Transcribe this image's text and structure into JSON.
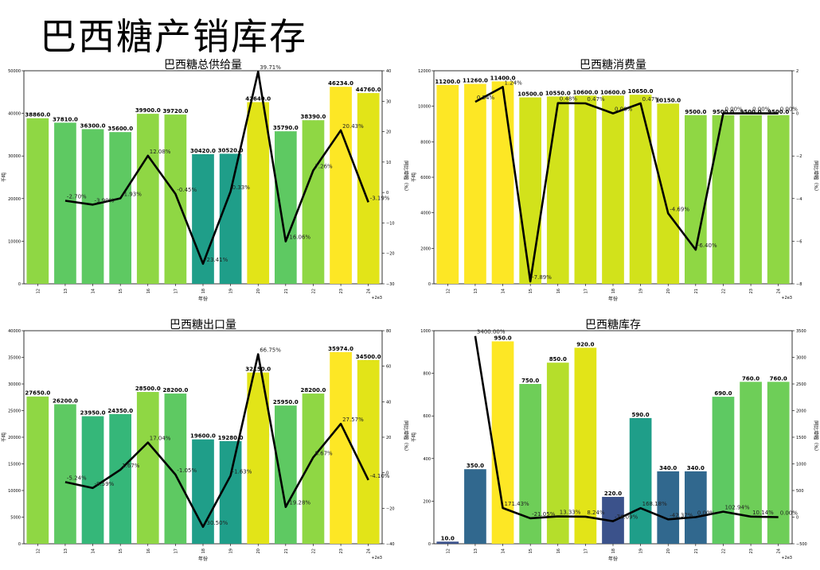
{
  "page": {
    "title": "巴西糖产销库存"
  },
  "palette": {
    "c00": "#3b528b",
    "c01": "#31688e",
    "c02": "#26828e",
    "c03": "#1f9e89",
    "c04": "#35b779",
    "c05": "#5ec962",
    "c06": "#6ece58",
    "c07": "#8fd744",
    "c08": "#b5de2b",
    "c09": "#d2e21b",
    "c10": "#e2e418",
    "c11": "#fde725",
    "line": "#000000",
    "grid": "#d8d8d8"
  },
  "chart_data": [
    {
      "type": "bar",
      "title": "巴西糖总供给量",
      "xlabel": "年份",
      "ylabel": "千吨",
      "y2label": "同比增幅（%）",
      "x_offset_label": "+2e3",
      "categories": [
        "12",
        "13",
        "14",
        "15",
        "16",
        "17",
        "18",
        "19",
        "20",
        "21",
        "22",
        "23",
        "24"
      ],
      "values": [
        38860.0,
        37810.0,
        36300.0,
        35600.0,
        39900.0,
        39720.0,
        30420.0,
        30520.0,
        42640.0,
        35790.0,
        38390.0,
        46234.0,
        44760.0
      ],
      "value_labels": [
        "38860.0",
        "37810.0",
        "36300.0",
        "35600.0",
        "39900.0",
        "39720.0",
        "30420.0",
        "30520.0",
        "42640.0",
        "35790.0",
        "38390.0",
        "46234.0",
        "44760.0"
      ],
      "bar_colors": [
        "c07",
        "c05",
        "c05",
        "c05",
        "c07",
        "c07",
        "c03",
        "c03",
        "c10",
        "c05",
        "c07",
        "c11",
        "c10"
      ],
      "ylim": [
        0,
        50000
      ],
      "yticks": [
        "0",
        "10000",
        "20000",
        "30000",
        "40000",
        "50000"
      ],
      "growth": [
        null,
        -2.7,
        -3.99,
        -1.93,
        12.08,
        -0.45,
        -23.41,
        0.33,
        39.71,
        -16.06,
        7.26,
        20.43,
        -3.19
      ],
      "growth_labels": [
        "",
        "-2.70%",
        "-3.99%",
        "-1.93%",
        "12.08%",
        "-0.45%",
        "-23.41%",
        "0.33%",
        "39.71%",
        "-16.06%",
        "7.26%",
        "20.43%",
        "-3.19%"
      ],
      "y2lim": [
        -30,
        40
      ],
      "y2ticks": [
        "−30",
        "−20",
        "−10",
        "0",
        "10",
        "20",
        "30",
        "40"
      ]
    },
    {
      "type": "bar",
      "title": "巴西糖消费量",
      "xlabel": "年份",
      "ylabel": "千吨",
      "y2label": "同比增幅（%）",
      "x_offset_label": "+2e3",
      "categories": [
        "12",
        "13",
        "14",
        "15",
        "16",
        "17",
        "18",
        "19",
        "20",
        "21",
        "22",
        "23",
        "24"
      ],
      "values": [
        11200.0,
        11260.0,
        11400.0,
        10500.0,
        10550.0,
        10600.0,
        10600.0,
        10650.0,
        10150.0,
        9500.0,
        9500.0,
        9500.0,
        9500.0
      ],
      "value_labels": [
        "11200.0",
        "11260.0",
        "11400.0",
        "10500.0",
        "10550.0",
        "10600.0",
        "10600.0",
        "10650.0",
        "10150.0",
        "9500.0",
        "9500.0",
        "9500.0",
        "9500.0"
      ],
      "bar_colors": [
        "c11",
        "c11",
        "c11",
        "c09",
        "c09",
        "c09",
        "c09",
        "c09",
        "c09",
        "c07",
        "c07",
        "c07",
        "c07"
      ],
      "ylim": [
        0,
        12000
      ],
      "yticks": [
        "0",
        "2000",
        "4000",
        "6000",
        "8000",
        "10000",
        "12000"
      ],
      "growth": [
        null,
        0.54,
        1.24,
        -7.89,
        0.48,
        0.47,
        0.0,
        0.47,
        -4.69,
        -6.4,
        0.0,
        0.0,
        0.0
      ],
      "growth_labels": [
        "",
        "0.54%",
        "1.24%",
        "-7.89%",
        "0.48%",
        "0.47%",
        "0.00%",
        "0.47%",
        "-4.69%",
        "-6.40%",
        "0.00%",
        "0.00%",
        "0.00%"
      ],
      "y2lim": [
        -8,
        2
      ],
      "y2ticks": [
        "−8",
        "−6",
        "−4",
        "−2",
        "0",
        "2"
      ]
    },
    {
      "type": "bar",
      "title": "巴西糖出口量",
      "xlabel": "年份",
      "ylabel": "千吨",
      "y2label": "同比增幅（%）",
      "x_offset_label": "+2e3",
      "categories": [
        "12",
        "13",
        "14",
        "15",
        "16",
        "17",
        "18",
        "19",
        "20",
        "21",
        "22",
        "23",
        "24"
      ],
      "values": [
        27650.0,
        26200.0,
        23950.0,
        24350.0,
        28500.0,
        28200.0,
        19600.0,
        19280.0,
        32150.0,
        25950.0,
        28200.0,
        35974.0,
        34500.0
      ],
      "value_labels": [
        "27650.0",
        "26200.0",
        "23950.0",
        "24350.0",
        "28500.0",
        "28200.0",
        "19600.0",
        "19280.0",
        "32150.0",
        "25950.0",
        "28200.0",
        "35974.0",
        "34500.0"
      ],
      "bar_colors": [
        "c07",
        "c05",
        "c04",
        "c04",
        "c07",
        "c05",
        "c03",
        "c03",
        "c10",
        "c05",
        "c07",
        "c11",
        "c10"
      ],
      "ylim": [
        0,
        40000
      ],
      "yticks": [
        "0",
        "5000",
        "10000",
        "15000",
        "20000",
        "25000",
        "30000",
        "35000",
        "40000"
      ],
      "growth": [
        null,
        -5.24,
        -8.59,
        1.67,
        17.04,
        -1.05,
        -30.5,
        -1.63,
        66.75,
        -19.28,
        8.67,
        27.57,
        -4.1
      ],
      "growth_labels": [
        "",
        "-5.24%",
        "-8.59%",
        "1.67%",
        "17.04%",
        "-1.05%",
        "-30.50%",
        "-1.63%",
        "66.75%",
        "-19.28%",
        "8.67%",
        "27.57%",
        "-4.10%"
      ],
      "y2lim": [
        -40,
        80
      ],
      "y2ticks": [
        "−40",
        "−20",
        "0",
        "20",
        "40",
        "60",
        "80"
      ]
    },
    {
      "type": "bar",
      "title": "巴西糖库存",
      "xlabel": "年份",
      "ylabel": "千吨",
      "y2label": "同比增幅（%）",
      "x_offset_label": "+2e3",
      "categories": [
        "12",
        "13",
        "14",
        "15",
        "16",
        "17",
        "18",
        "19",
        "20",
        "21",
        "22",
        "23",
        "24"
      ],
      "values": [
        10.0,
        350.0,
        950.0,
        750.0,
        850.0,
        920.0,
        220.0,
        590.0,
        340.0,
        340.0,
        690.0,
        760.0,
        760.0
      ],
      "value_labels": [
        "10.0",
        "350.0",
        "950.0",
        "750.0",
        "850.0",
        "920.0",
        "220.0",
        "590.0",
        "340.0",
        "340.0",
        "690.0",
        "760.0",
        "760.0"
      ],
      "bar_colors": [
        "c00",
        "c01",
        "c11",
        "c06",
        "c08",
        "c10",
        "c00",
        "c03",
        "c01",
        "c01",
        "c05",
        "c06",
        "c06"
      ],
      "ylim": [
        0,
        1000
      ],
      "yticks": [
        "0",
        "200",
        "400",
        "600",
        "800",
        "1000"
      ],
      "growth": [
        null,
        3400.0,
        171.43,
        -21.05,
        13.33,
        8.24,
        -76.09,
        168.18,
        -42.37,
        0.0,
        102.94,
        10.14,
        0.0
      ],
      "growth_labels": [
        "",
        "3400.00%",
        "171.43%",
        "-21.05%",
        "13.33%",
        "8.24%",
        "-76.09%",
        "168.18%",
        "-42.37%",
        "0.00%",
        "102.94%",
        "10.14%",
        "0.00%"
      ],
      "y2lim": [
        -500,
        3500
      ],
      "y2ticks": [
        "−500",
        "0",
        "500",
        "1000",
        "1500",
        "2000",
        "2500",
        "3000",
        "3500"
      ]
    }
  ]
}
